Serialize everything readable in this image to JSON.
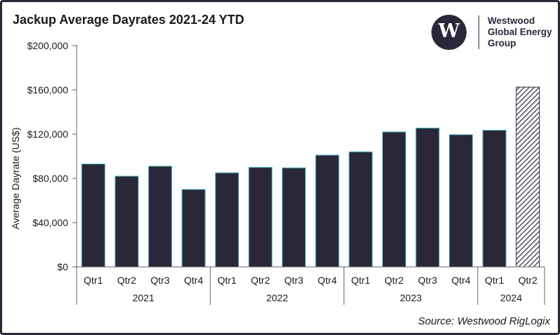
{
  "title": "Jackup Average Dayrates 2021-24 YTD",
  "logo": {
    "symbol": "W",
    "line1": "Westwood",
    "line2": "Global Energy",
    "line3": "Group"
  },
  "source": "Source: Westwood RigLogix",
  "colors": {
    "bar": "#2a2838",
    "bar_outline": "#4bb5c6",
    "frame": "#2a2838",
    "axis": "#666666"
  },
  "chart_data": {
    "type": "bar",
    "title": "Jackup Average Dayrates 2021-24 YTD",
    "ylabel": "Average Dayrate (US$)",
    "ylim": [
      0,
      200000
    ],
    "yticks": [
      0,
      40000,
      80000,
      120000,
      160000,
      200000
    ],
    "ytick_labels": [
      "$0",
      "$40,000",
      "$80,000",
      "$120,000",
      "$160,000",
      "$200,000"
    ],
    "categories": [
      "Qtr1",
      "Qtr2",
      "Qtr3",
      "Qtr4",
      "Qtr1",
      "Qtr2",
      "Qtr3",
      "Qtr4",
      "Qtr1",
      "Qtr2",
      "Qtr3",
      "Qtr4",
      "Qtr1",
      "Qtr2"
    ],
    "groups": [
      {
        "label": "2021",
        "count": 4
      },
      {
        "label": "2022",
        "count": 4
      },
      {
        "label": "2023",
        "count": 4
      },
      {
        "label": "2024",
        "count": 2
      }
    ],
    "values": [
      93000,
      82000,
      91000,
      70000,
      85000,
      90000,
      89500,
      101000,
      104000,
      122000,
      125500,
      119500,
      123500,
      162500
    ],
    "hatched": [
      false,
      false,
      false,
      false,
      false,
      false,
      false,
      false,
      false,
      false,
      false,
      false,
      false,
      true
    ],
    "grid": false,
    "legend": "none"
  }
}
